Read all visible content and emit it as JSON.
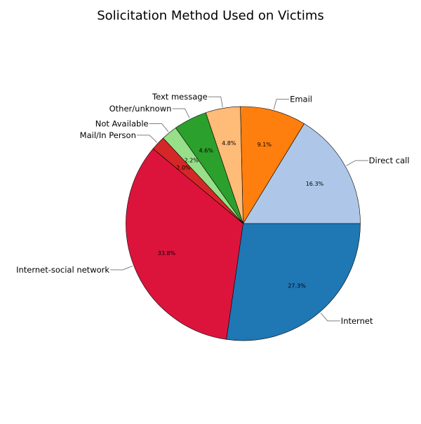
{
  "chart_data": {
    "type": "pie",
    "title": "Solicitation Method Used on Victims",
    "start_angle_deg": 0,
    "direction": "counterclockwise",
    "slices": [
      {
        "label": "Direct call",
        "value": 16.3,
        "pct_label": "16.3%",
        "color": "#aec7e8"
      },
      {
        "label": "Email",
        "value": 9.1,
        "pct_label": "9.1%",
        "color": "#ff7f0e"
      },
      {
        "label": "Text message",
        "value": 4.8,
        "pct_label": "4.8%",
        "color": "#ffbb78"
      },
      {
        "label": "Other/unknown",
        "value": 4.6,
        "pct_label": "4.6%",
        "color": "#2ca02c"
      },
      {
        "label": "Not Available",
        "value": 2.2,
        "pct_label": "2.2%",
        "color": "#98df8a"
      },
      {
        "label": "Mail/In Person",
        "value": 2.0,
        "pct_label": "2.0%",
        "color": "#d62728"
      },
      {
        "label": "Internet-social network",
        "value": 33.8,
        "pct_label": "33.8%",
        "color": "#dc143c"
      },
      {
        "label": "Internet",
        "value": 27.3,
        "pct_label": "27.3%",
        "color": "#1f77b4"
      }
    ]
  }
}
